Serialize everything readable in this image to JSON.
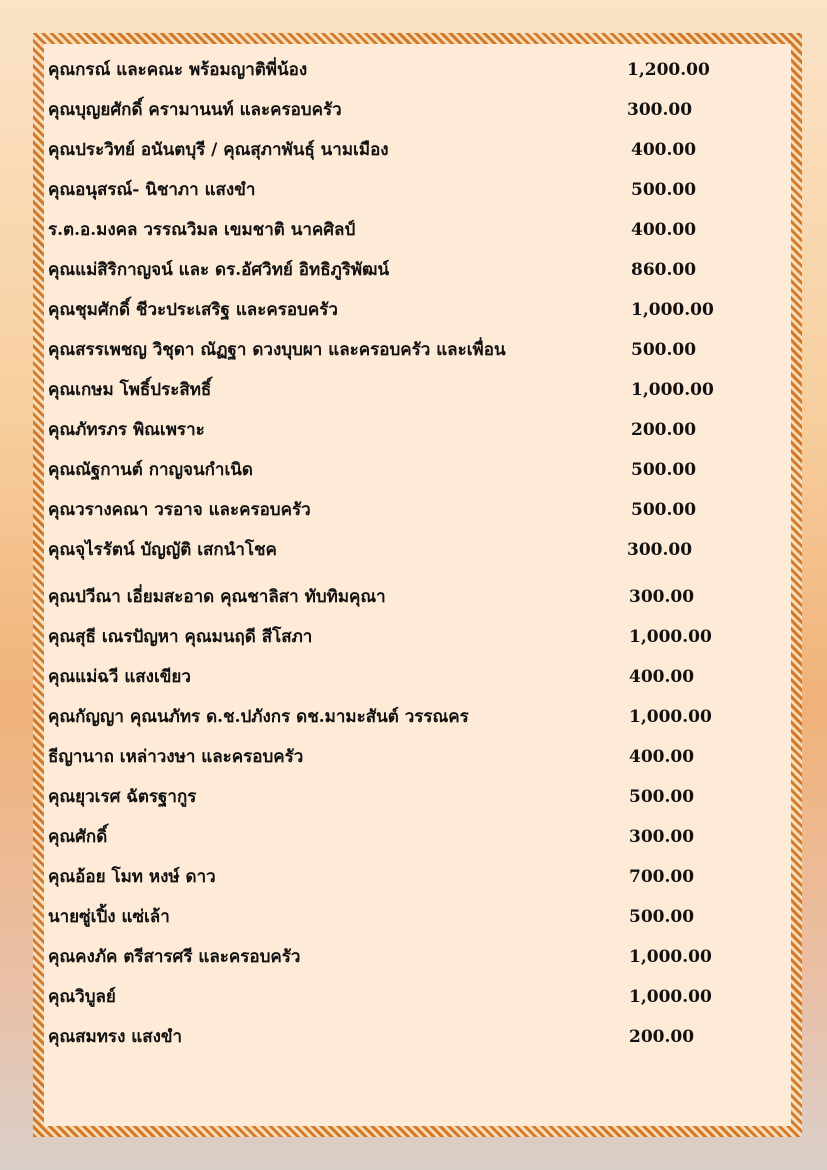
{
  "donations": [
    {
      "name": "คุณกรณ์ และคณะ พร้อมญาติพี่น้อง",
      "amount": "1,200.00"
    },
    {
      "name": "คุณบุญยศักดิ์   ครามานนท์ และครอบครัว",
      "amount": "300.00"
    },
    {
      "name": "คุณประวิทย์  อนันตบุรี / คุณสุภาพันธุ์ นามเมือง",
      "amount": "400.00"
    },
    {
      "name": "คุณอนุสรณ์- นิชาภา แสงขำ",
      "amount": "500.00"
    },
    {
      "name": "ร.ต.อ.มงคล วรรณวิมล  เขมชาติ  นาคศิลป์",
      "amount": "400.00"
    },
    {
      "name": "คุณแม่สิริกาญจน์ และ ดร.อัศวิทย์ อิทธิภูริพัฒน์",
      "amount": "860.00"
    },
    {
      "name": "คุณชุมศักดิ์   ชีวะประเสริฐ และครอบครัว",
      "amount": "1,000.00"
    },
    {
      "name": "คุณสรรเพชญ วิชุดา ณัฏฐา ดวงบุบผา และครอบครัว และเพื่อน",
      "amount": "500.00"
    },
    {
      "name": "คุณเกษม โพธิ์ประสิทธิ์",
      "amount": "1,000.00"
    },
    {
      "name": "คุณภัทรภร พิณเพราะ",
      "amount": "200.00"
    },
    {
      "name": "คุณณัฐกานต์ กาญจนกำเนิด",
      "amount": "500.00"
    },
    {
      "name": "คุณวรางคณา วรอาจ และครอบครัว",
      "amount": "500.00"
    },
    {
      "name": "คุณจุไรรัตน์ บัญญัติ เสกนำโชค",
      "amount": "300.00"
    },
    {
      "name": "คุณปวีณา เอี่ยมสะอาด คุณชาลิสา ทับทิมคุณา",
      "amount": "300.00"
    },
    {
      "name": "คุณสุธี เณรปัญหา คุณมนฤดี สีโสภา",
      "amount": "1,000.00"
    },
    {
      "name": "คุณแม่ฉวี แสงเขียว",
      "amount": "400.00"
    },
    {
      "name": "คุณกัญญา คุณนภัทร ด.ช.ปภังกร ดช.มามะสันต์ วรรณคร",
      "amount": "1,000.00"
    },
    {
      "name": "ธีญานาถ เหล่าวงษา และครอบครัว",
      "amount": "400.00"
    },
    {
      "name": "คุณยุวเรศ ฉัตรฐากูร",
      "amount": "500.00"
    },
    {
      "name": "คุณศักดิ์",
      "amount": "300.00"
    },
    {
      "name": "คุณอ้อย โมท หงษ์ ดาว",
      "amount": "700.00"
    },
    {
      "name": "นายซู่เปิ้ง แซ่เล้า",
      "amount": "500.00"
    },
    {
      "name": "คุณคงภัค ตรีสารศรี และครอบครัว",
      "amount": "1,000.00"
    },
    {
      "name": "คุณวิบูลย์",
      "amount": "1,000.00"
    },
    {
      "name": "คุณสมทรง แสงขำ",
      "amount": "200.00"
    }
  ],
  "colors": {
    "border": "#d27a2a",
    "paper": "#fdebd8",
    "text": "#111111"
  }
}
